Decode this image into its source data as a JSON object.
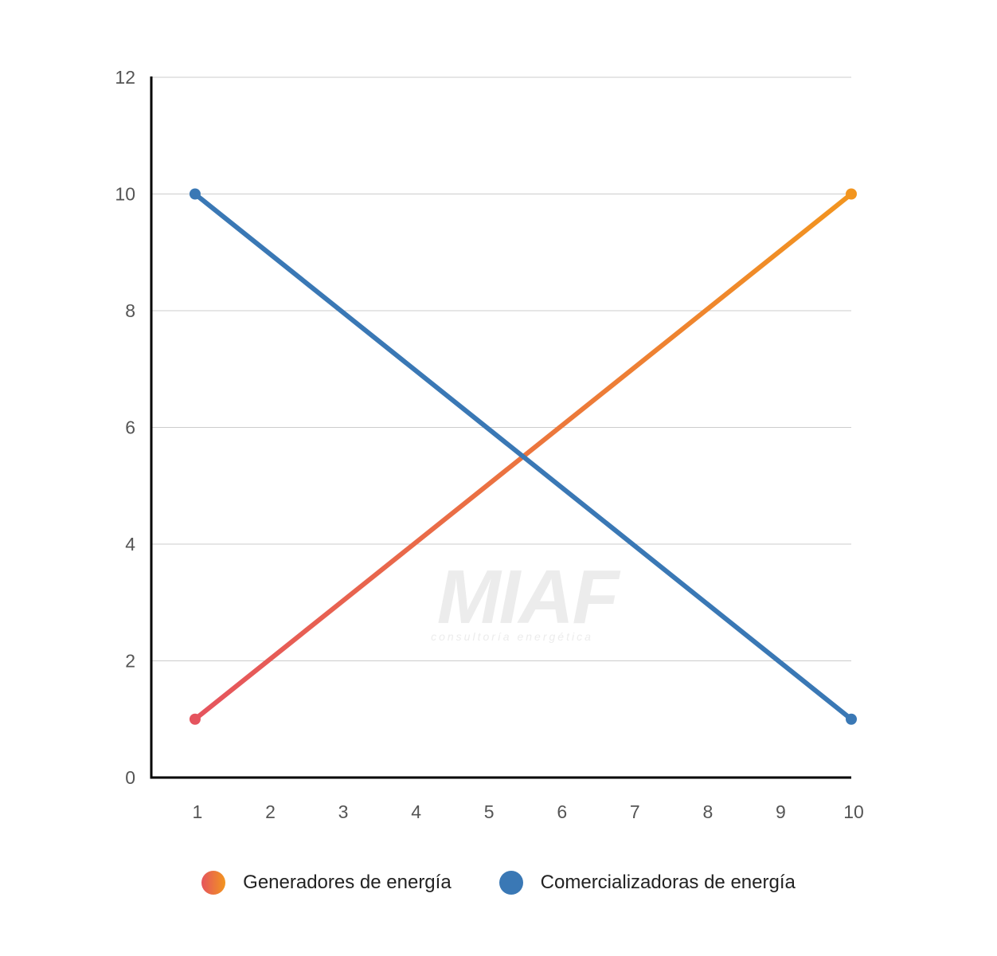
{
  "chart_data": {
    "type": "line",
    "x": [
      1,
      10
    ],
    "xticks": [
      1,
      2,
      3,
      4,
      5,
      6,
      7,
      8,
      9,
      10
    ],
    "yticks": [
      0,
      2,
      4,
      6,
      8,
      10,
      12
    ],
    "xlim": [
      0.4,
      10
    ],
    "ylim": [
      0,
      12
    ],
    "grid": true,
    "legend_position": "bottom",
    "series": [
      {
        "name": "Generadores de energía",
        "x": [
          1,
          10
        ],
        "values": [
          1,
          10
        ],
        "color_start": "#e5545e",
        "color_end": "#f2951f"
      },
      {
        "name": "Comercializadoras de energía",
        "x": [
          1,
          10
        ],
        "values": [
          10,
          1
        ],
        "color": "#3a78b5"
      }
    ]
  },
  "watermark": {
    "brand": "MIAF",
    "tagline": "consultoría energética"
  }
}
